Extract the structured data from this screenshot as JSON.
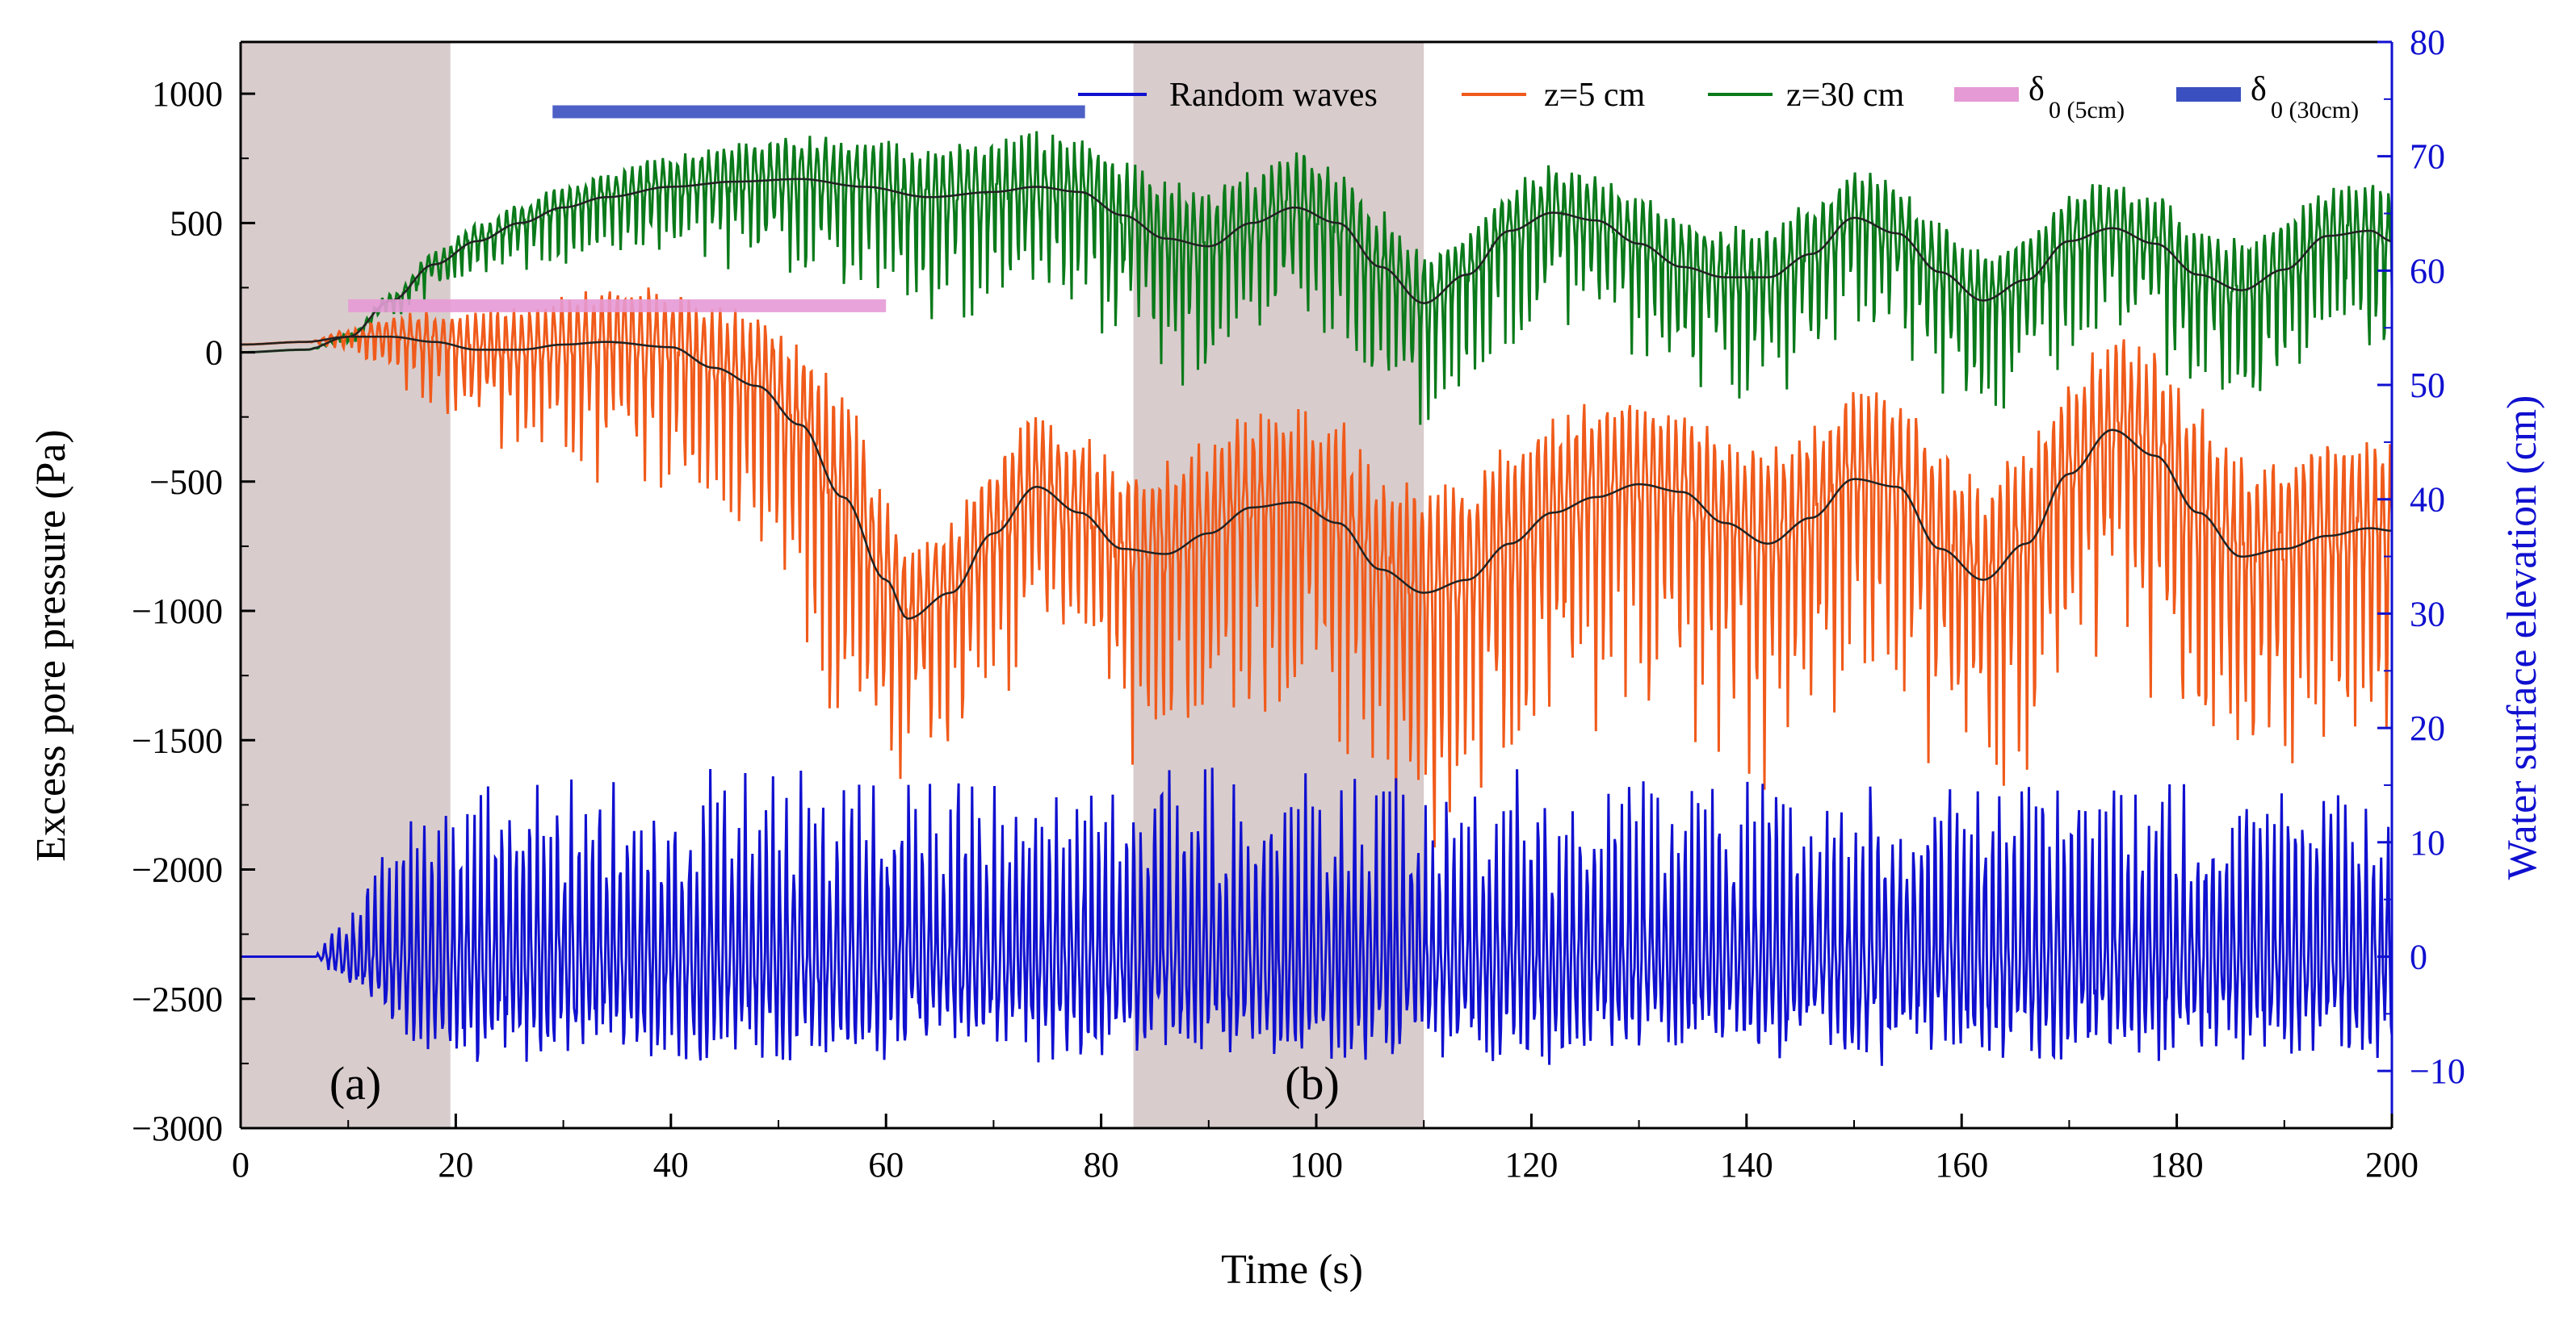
{
  "chart_data": {
    "type": "line",
    "xlabel": "Time (s)",
    "ylabel_left": "Excess pore pressure (Pa)",
    "ylabel_right": "Water surface elevation (cm)",
    "xlim": [
      0,
      200
    ],
    "ylim_left": [
      -3000,
      1200
    ],
    "ylim_right": [
      -15,
      80
    ],
    "xticks": [
      0,
      20,
      40,
      60,
      80,
      100,
      120,
      140,
      160,
      180,
      200
    ],
    "yticks_left": [
      -3000,
      -2500,
      -2000,
      -1500,
      -1000,
      -500,
      0,
      500,
      1000
    ],
    "yticks_right": [
      -10,
      0,
      10,
      20,
      30,
      40,
      50,
      60,
      70,
      80
    ],
    "xtick_labels": [
      "0",
      "20",
      "40",
      "60",
      "80",
      "100",
      "120",
      "140",
      "160",
      "180",
      "200"
    ],
    "yticks_left_labels": [
      "−3000",
      "−2500",
      "−2000",
      "−1500",
      "−1000",
      "−500",
      "0",
      "500",
      "1000"
    ],
    "yticks_right_labels": [
      "−10",
      "0",
      "10",
      "20",
      "30",
      "40",
      "50",
      "60",
      "70",
      "80"
    ],
    "right_axis_color": "#1010d0",
    "shaded_regions": [
      {
        "label": "(a)",
        "x_start": 0,
        "x_end": 19.5,
        "color": "#d9cccc"
      },
      {
        "label": "(b)",
        "x_start": 83,
        "x_end": 110,
        "color": "#d9cccc"
      }
    ],
    "horizontal_bars": [
      {
        "name": "δ0 (5cm)",
        "x_start": 10,
        "x_end": 60,
        "y": 180,
        "color": "#e59ad6"
      },
      {
        "name": "δ0 (30cm)",
        "x_start": 29,
        "x_end": 78.5,
        "y": 930,
        "color": "#3a4fc0"
      }
    ],
    "legend": [
      {
        "label": "Random waves",
        "color": "#1010d0",
        "kind": "line"
      },
      {
        "label": "z=5 cm",
        "color": "#f05a1a",
        "kind": "line"
      },
      {
        "label": "z=30 cm",
        "color": "#0a7a1a",
        "kind": "line"
      },
      {
        "label": "δ",
        "sub": "0 (5cm)",
        "color": "#e59ad6",
        "kind": "bar"
      },
      {
        "label": "δ",
        "sub": "0 (30cm)",
        "color": "#3a4fc0",
        "kind": "bar"
      }
    ],
    "series": [
      {
        "name": "z=30 cm",
        "color": "#0a7a1a",
        "axis": "left",
        "trend_x": [
          0,
          6,
          10,
          14,
          18,
          22,
          26,
          30,
          34,
          40,
          46,
          52,
          58,
          64,
          70,
          74,
          78,
          82,
          86,
          90,
          94,
          98,
          102,
          106,
          110,
          114,
          118,
          122,
          126,
          130,
          134,
          138,
          142,
          146,
          150,
          154,
          158,
          162,
          166,
          170,
          174,
          178,
          182,
          186,
          190,
          194,
          198,
          200
        ],
        "trend_y": [
          0,
          10,
          60,
          200,
          340,
          430,
          500,
          560,
          600,
          640,
          660,
          670,
          640,
          600,
          620,
          640,
          620,
          530,
          440,
          410,
          500,
          560,
          500,
          330,
          190,
          300,
          470,
          540,
          510,
          420,
          330,
          290,
          290,
          380,
          520,
          460,
          310,
          200,
          280,
          430,
          480,
          420,
          300,
          240,
          320,
          450,
          470,
          430
        ],
        "amplitude": [
          0,
          0,
          20,
          40,
          80,
          100,
          120,
          130,
          150,
          200,
          230,
          260,
          300,
          300,
          320,
          330,
          320,
          330,
          340,
          330,
          320,
          340,
          330,
          330,
          300,
          280,
          280,
          280,
          280,
          280,
          290,
          300,
          310,
          300,
          290,
          300,
          300,
          300,
          300,
          290,
          290,
          290,
          300,
          300,
          300,
          290,
          290,
          280
        ]
      },
      {
        "name": "z=5 cm",
        "color": "#f05a1a",
        "axis": "left",
        "trend_x": [
          0,
          6,
          10,
          14,
          18,
          22,
          26,
          30,
          34,
          40,
          44,
          48,
          52,
          56,
          60,
          62,
          66,
          70,
          74,
          78,
          82,
          86,
          90,
          94,
          98,
          102,
          106,
          110,
          114,
          118,
          122,
          126,
          130,
          134,
          138,
          142,
          146,
          150,
          154,
          158,
          162,
          166,
          170,
          174,
          178,
          182,
          186,
          190,
          194,
          198,
          200
        ],
        "trend_y": [
          30,
          40,
          60,
          60,
          40,
          10,
          10,
          30,
          40,
          20,
          -60,
          -130,
          -280,
          -560,
          -880,
          -1030,
          -930,
          -700,
          -520,
          -620,
          -760,
          -780,
          -700,
          -600,
          -580,
          -660,
          -840,
          -930,
          -880,
          -740,
          -620,
          -560,
          -510,
          -540,
          -660,
          -740,
          -640,
          -490,
          -520,
          -760,
          -880,
          -740,
          -470,
          -300,
          -400,
          -620,
          -790,
          -760,
          -710,
          -680,
          -690
        ],
        "amplitude": [
          0,
          0,
          40,
          120,
          200,
          240,
          260,
          300,
          330,
          360,
          400,
          450,
          520,
          650,
          500,
          420,
          420,
          460,
          480,
          480,
          500,
          540,
          560,
          560,
          580,
          600,
          640,
          650,
          620,
          600,
          580,
          560,
          560,
          560,
          560,
          580,
          560,
          540,
          560,
          600,
          600,
          580,
          560,
          600,
          620,
          640,
          600,
          580,
          560,
          540,
          520
        ]
      },
      {
        "name": "Random waves",
        "color": "#1010d0",
        "axis": "right",
        "calm_until": 7,
        "base_level": 0,
        "amplitude": 9
      }
    ]
  }
}
